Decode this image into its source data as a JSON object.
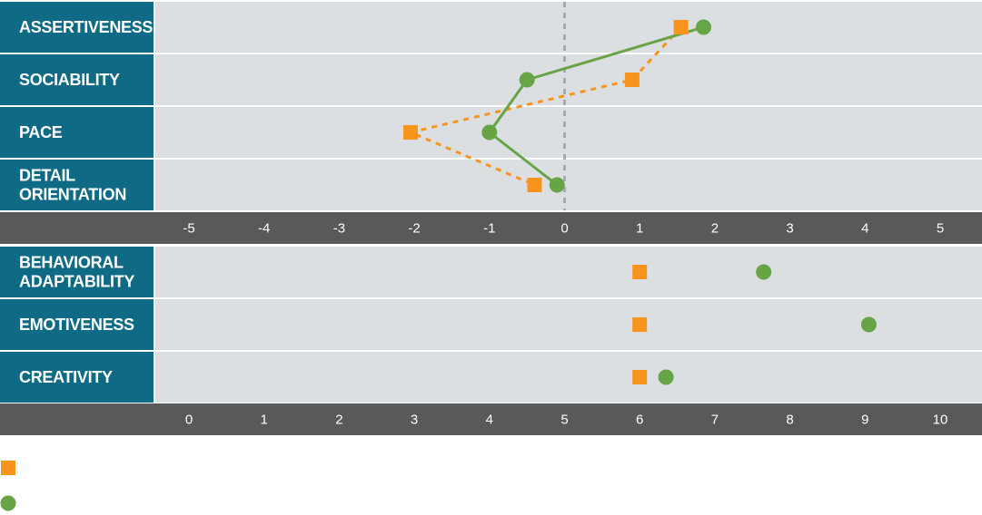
{
  "colors": {
    "label_bg": "#0e6a85",
    "plot_bg": "#dcdfe1",
    "axis_bg": "#58595b",
    "series_square": "#f7941d",
    "series_circle": "#66a446",
    "zero_line": "#a7a9ac"
  },
  "chart_data": [
    {
      "type": "line",
      "categories": [
        "ASSERTIVENESS",
        "SOCIABILITY",
        "PACE",
        "DETAIL ORIENTATION"
      ],
      "category_lines": [
        [
          "ASSERTIVENESS"
        ],
        [
          "SOCIABILITY"
        ],
        [
          "PACE"
        ],
        [
          "DETAIL",
          "ORIENTATION"
        ]
      ],
      "xlim": [
        -5,
        5
      ],
      "xticks": [
        "-5",
        "-4",
        "-3",
        "-2",
        "-1",
        "0",
        "1",
        "2",
        "3",
        "4",
        "5"
      ],
      "series": [
        {
          "marker": "square",
          "line": "dotted",
          "color": "#f7941d",
          "values": [
            1.55,
            0.9,
            -2.05,
            -0.4
          ]
        },
        {
          "marker": "circle",
          "line": "solid",
          "color": "#66a446",
          "values": [
            1.85,
            -0.5,
            -1.0,
            -0.1
          ]
        }
      ],
      "zero_line": true
    },
    {
      "type": "scatter",
      "categories": [
        "BEHAVIORAL ADAPTABILITY",
        "EMOTIVENESS",
        "CREATIVITY"
      ],
      "category_lines": [
        [
          "BEHAVIORAL",
          "ADAPTABILITY"
        ],
        [
          "EMOTIVENESS"
        ],
        [
          "CREATIVITY"
        ]
      ],
      "xlim": [
        0,
        10
      ],
      "xticks": [
        "0",
        "1",
        "2",
        "3",
        "4",
        "5",
        "6",
        "7",
        "8",
        "9",
        "10"
      ],
      "series": [
        {
          "marker": "square",
          "color": "#f7941d",
          "values": [
            6.0,
            6.0,
            6.0
          ]
        },
        {
          "marker": "circle",
          "color": "#66a446",
          "values": [
            7.65,
            9.05,
            6.35
          ]
        }
      ]
    }
  ],
  "legend": {
    "placement": "bottom-left",
    "items": [
      {
        "marker": "square",
        "color": "#f7941d"
      },
      {
        "marker": "circle",
        "color": "#66a446"
      }
    ]
  }
}
